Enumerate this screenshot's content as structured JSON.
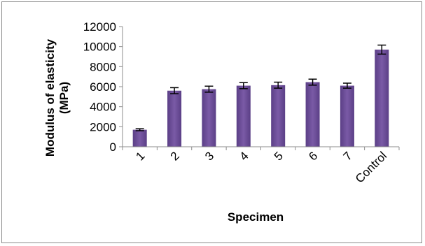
{
  "chart_data": {
    "type": "bar",
    "title": "",
    "xlabel": "Specimen",
    "ylabel_line1": "Modulus of elasticity",
    "ylabel_line2": "(MPa)",
    "ylim": [
      0,
      12000
    ],
    "yticks": [
      "0",
      "2000",
      "4000",
      "6000",
      "8000",
      "10000",
      "12000"
    ],
    "categories": [
      "1",
      "2",
      "3",
      "4",
      "5",
      "6",
      "7",
      "Control"
    ],
    "values": [
      1700,
      5600,
      5750,
      6100,
      6150,
      6450,
      6100,
      9700
    ],
    "errors": [
      100,
      300,
      300,
      300,
      300,
      300,
      250,
      450
    ],
    "bar_color": "#7a5aa6",
    "bar_color_dark": "#5b3f86",
    "grid": false,
    "legend": "none"
  }
}
